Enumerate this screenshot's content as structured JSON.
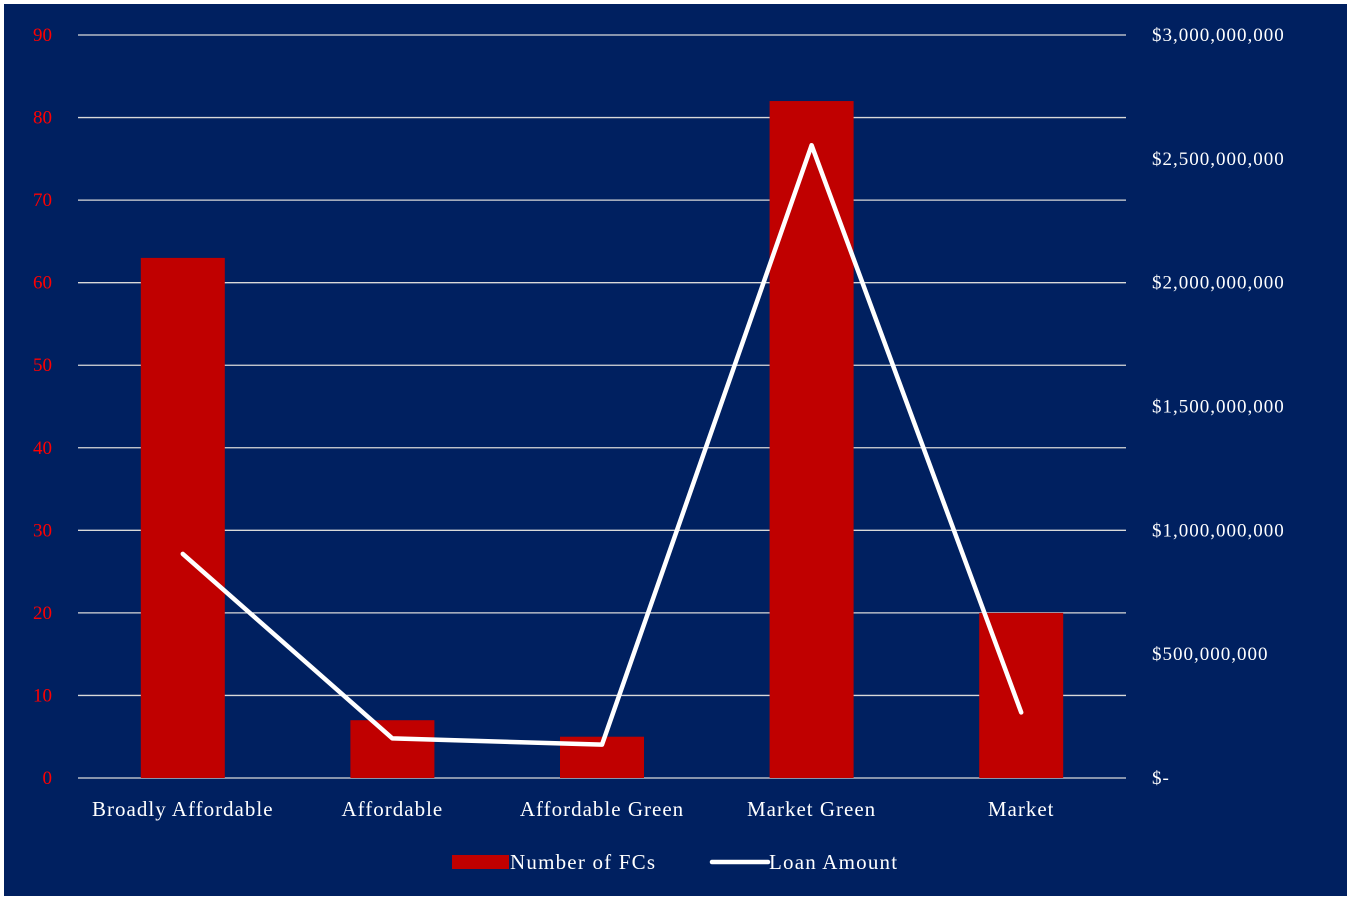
{
  "chart_data": {
    "type": "bar",
    "categories": [
      "Broadly Affordable",
      "Affordable",
      "Affordable Green",
      "Market Green",
      "Market"
    ],
    "series": [
      {
        "name": "Number of FCs",
        "kind": "bar",
        "axis": "left",
        "color": "#C00000",
        "values": [
          63,
          7,
          5,
          82,
          20
        ]
      },
      {
        "name": "Loan Amount",
        "kind": "line",
        "axis": "right",
        "color": "#FFFFFF",
        "values": [
          905000000,
          160000000,
          135000000,
          2555000000,
          265000000
        ]
      }
    ],
    "y_left": {
      "min": 0,
      "max": 90,
      "ticks": [
        "0",
        "10",
        "20",
        "30",
        "40",
        "50",
        "60",
        "70",
        "80",
        "90"
      ],
      "tick_color": "#FF0000"
    },
    "y_right": {
      "min": 0,
      "max": 3000000000,
      "ticks": [
        "$-",
        "$500,000,000",
        "$1,000,000,000",
        "$1,500,000,000",
        "$2,000,000,000",
        "$2,500,000,000",
        "$3,000,000,000"
      ],
      "tick_color": "#FFFFFF"
    },
    "grid": true,
    "legend_position": "bottom",
    "background_color": "#002060",
    "text_color": "#FFFFFF"
  }
}
